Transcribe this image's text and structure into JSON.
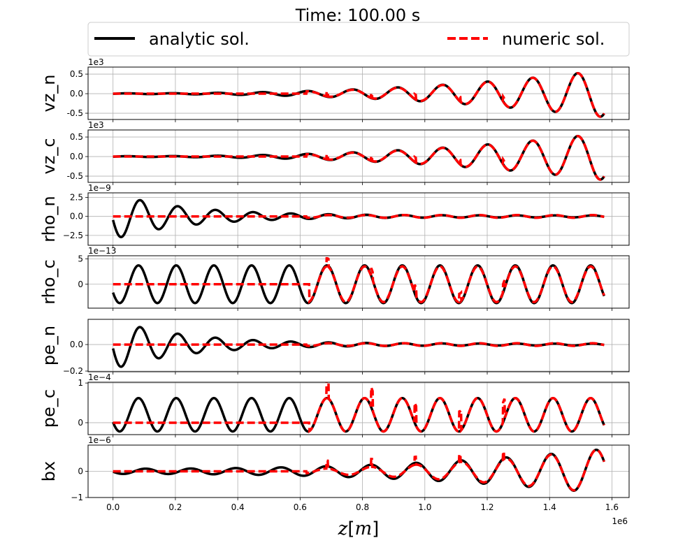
{
  "chart_data": {
    "type": "line",
    "title": "Time: 100.00 s",
    "xlabel": "z[m]",
    "xlabel_parts": [
      "z",
      "[",
      "m",
      "]"
    ],
    "x_offset_label": "1e6",
    "xlim": [
      -0.08,
      1.655
    ],
    "x_ticks": [
      0.0,
      0.2,
      0.4,
      0.6,
      0.8,
      1.0,
      1.2,
      1.4,
      1.6
    ],
    "x_tick_labels": [
      "0.0",
      "0.2",
      "0.4",
      "0.6",
      "0.8",
      "1.0",
      "1.2",
      "1.4",
      "1.6"
    ],
    "x_range": [
      0.0,
      1.575
    ],
    "grid": true,
    "legend": {
      "placement": "top",
      "entries": [
        {
          "label": "analytic sol.",
          "color": "#000000",
          "style": "solid"
        },
        {
          "label": "numeric sol.",
          "color": "#ff0000",
          "style": "dashed"
        }
      ]
    },
    "jump_positions": [
      0.685,
      0.827,
      0.967,
      1.11,
      1.25
    ],
    "panels": [
      {
        "ylabel": "vz_n",
        "offset": "1e3",
        "ylim": [
          -0.66,
          0.68
        ],
        "y_ticks": [
          0.5,
          0.0,
          -0.5
        ],
        "y_tick_labels": [
          "0.5",
          "0.0",
          "-0.5"
        ],
        "analytic": {
          "kind": "growing",
          "a0": 0.01,
          "a1": 0.6,
          "p": 2.5,
          "k": 43.5,
          "phase": -0.4
        },
        "numeric": {
          "kind": "growing_jump",
          "a0": 0.0,
          "a1": 0.6,
          "p": 2.5,
          "k": 43.5,
          "phase": -0.4,
          "start": 0.62,
          "jump": 0.12
        }
      },
      {
        "ylabel": "vz_c",
        "offset": "1e3",
        "ylim": [
          -0.66,
          0.68
        ],
        "y_ticks": [
          0.5,
          0.0,
          -0.5
        ],
        "y_tick_labels": [
          "0.5",
          "0.0",
          "-0.5"
        ],
        "analytic": {
          "kind": "growing",
          "a0": 0.01,
          "a1": 0.6,
          "p": 2.5,
          "k": 43.5,
          "phase": -0.4
        },
        "numeric": {
          "kind": "growing_jump",
          "a0": 0.0,
          "a1": 0.6,
          "p": 2.5,
          "k": 43.5,
          "phase": -0.4,
          "start": 0.62,
          "jump": 0.12
        }
      },
      {
        "ylabel": "rho_n",
        "offset": "1e−9",
        "ylim": [
          -3.8,
          3.1
        ],
        "y_ticks": [
          2.5,
          0.0,
          -2.5
        ],
        "y_tick_labels": [
          "2.5",
          "0.0",
          "−2.5"
        ],
        "analytic": {
          "kind": "decaying",
          "amp": 2.9,
          "tau": 0.24,
          "floor": 0.12,
          "k": 52.0,
          "phase": 3.3
        },
        "numeric": {
          "kind": "late",
          "start": 0.62,
          "amp": 0.18,
          "k": 52.0,
          "phase": 3.3
        }
      },
      {
        "ylabel": "rho_c",
        "offset": "1e−13",
        "ylim": [
          -4.7,
          5.6
        ],
        "y_ticks": [
          5.0,
          0.0
        ],
        "y_tick_labels": [
          "5",
          "0"
        ],
        "analytic": {
          "kind": "const",
          "amp": 3.7,
          "k": 52.0,
          "phase": 3.6
        },
        "numeric": {
          "kind": "const_jump",
          "amp": 3.5,
          "k": 52.0,
          "phase": 3.6,
          "start": 0.63,
          "jump": 1.6
        }
      },
      {
        "ylabel": "pe_n",
        "offset": "",
        "ylim": [
          -0.205,
          0.19
        ],
        "y_ticks": [
          0.0,
          -0.2
        ],
        "y_tick_labels": [
          "0.0",
          "−0.2"
        ],
        "analytic": {
          "kind": "decaying",
          "amp": 0.18,
          "tau": 0.24,
          "floor": 0.006,
          "k": 52.0,
          "phase": 3.3
        },
        "numeric": {
          "kind": "late",
          "start": 0.62,
          "amp": 0.01,
          "k": 52.0,
          "phase": 3.3
        }
      },
      {
        "ylabel": "pe_c",
        "offset": "1e−4",
        "ylim": [
          -0.3,
          1.02
        ],
        "y_ticks": [
          1.0,
          0.0
        ],
        "y_tick_labels": [
          "1",
          "0"
        ],
        "analytic": {
          "kind": "const_center",
          "center": 0.2,
          "amp": 0.42,
          "k": 52.0,
          "phase": 3.6
        },
        "numeric": {
          "kind": "const_center_jump",
          "center": 0.2,
          "amp": 0.42,
          "k": 52.0,
          "phase": 3.6,
          "start": 0.63,
          "jump": 0.5
        }
      },
      {
        "ylabel": "bx",
        "offset": "1e−6",
        "ylim": [
          -1.0,
          1.0
        ],
        "y_ticks": [
          0.0,
          -1.0
        ],
        "y_tick_labels": [
          "0",
          "−1"
        ],
        "analytic": {
          "kind": "growing",
          "a0": 0.1,
          "a1": 0.85,
          "p": 2.5,
          "k": 43.5,
          "phase": 3.3
        },
        "numeric": {
          "kind": "growing_jump",
          "a0": 0.0,
          "a1": 0.85,
          "p": 2.5,
          "k": 43.5,
          "phase": 3.3,
          "start": 0.62,
          "jump": 0.3
        }
      }
    ]
  }
}
